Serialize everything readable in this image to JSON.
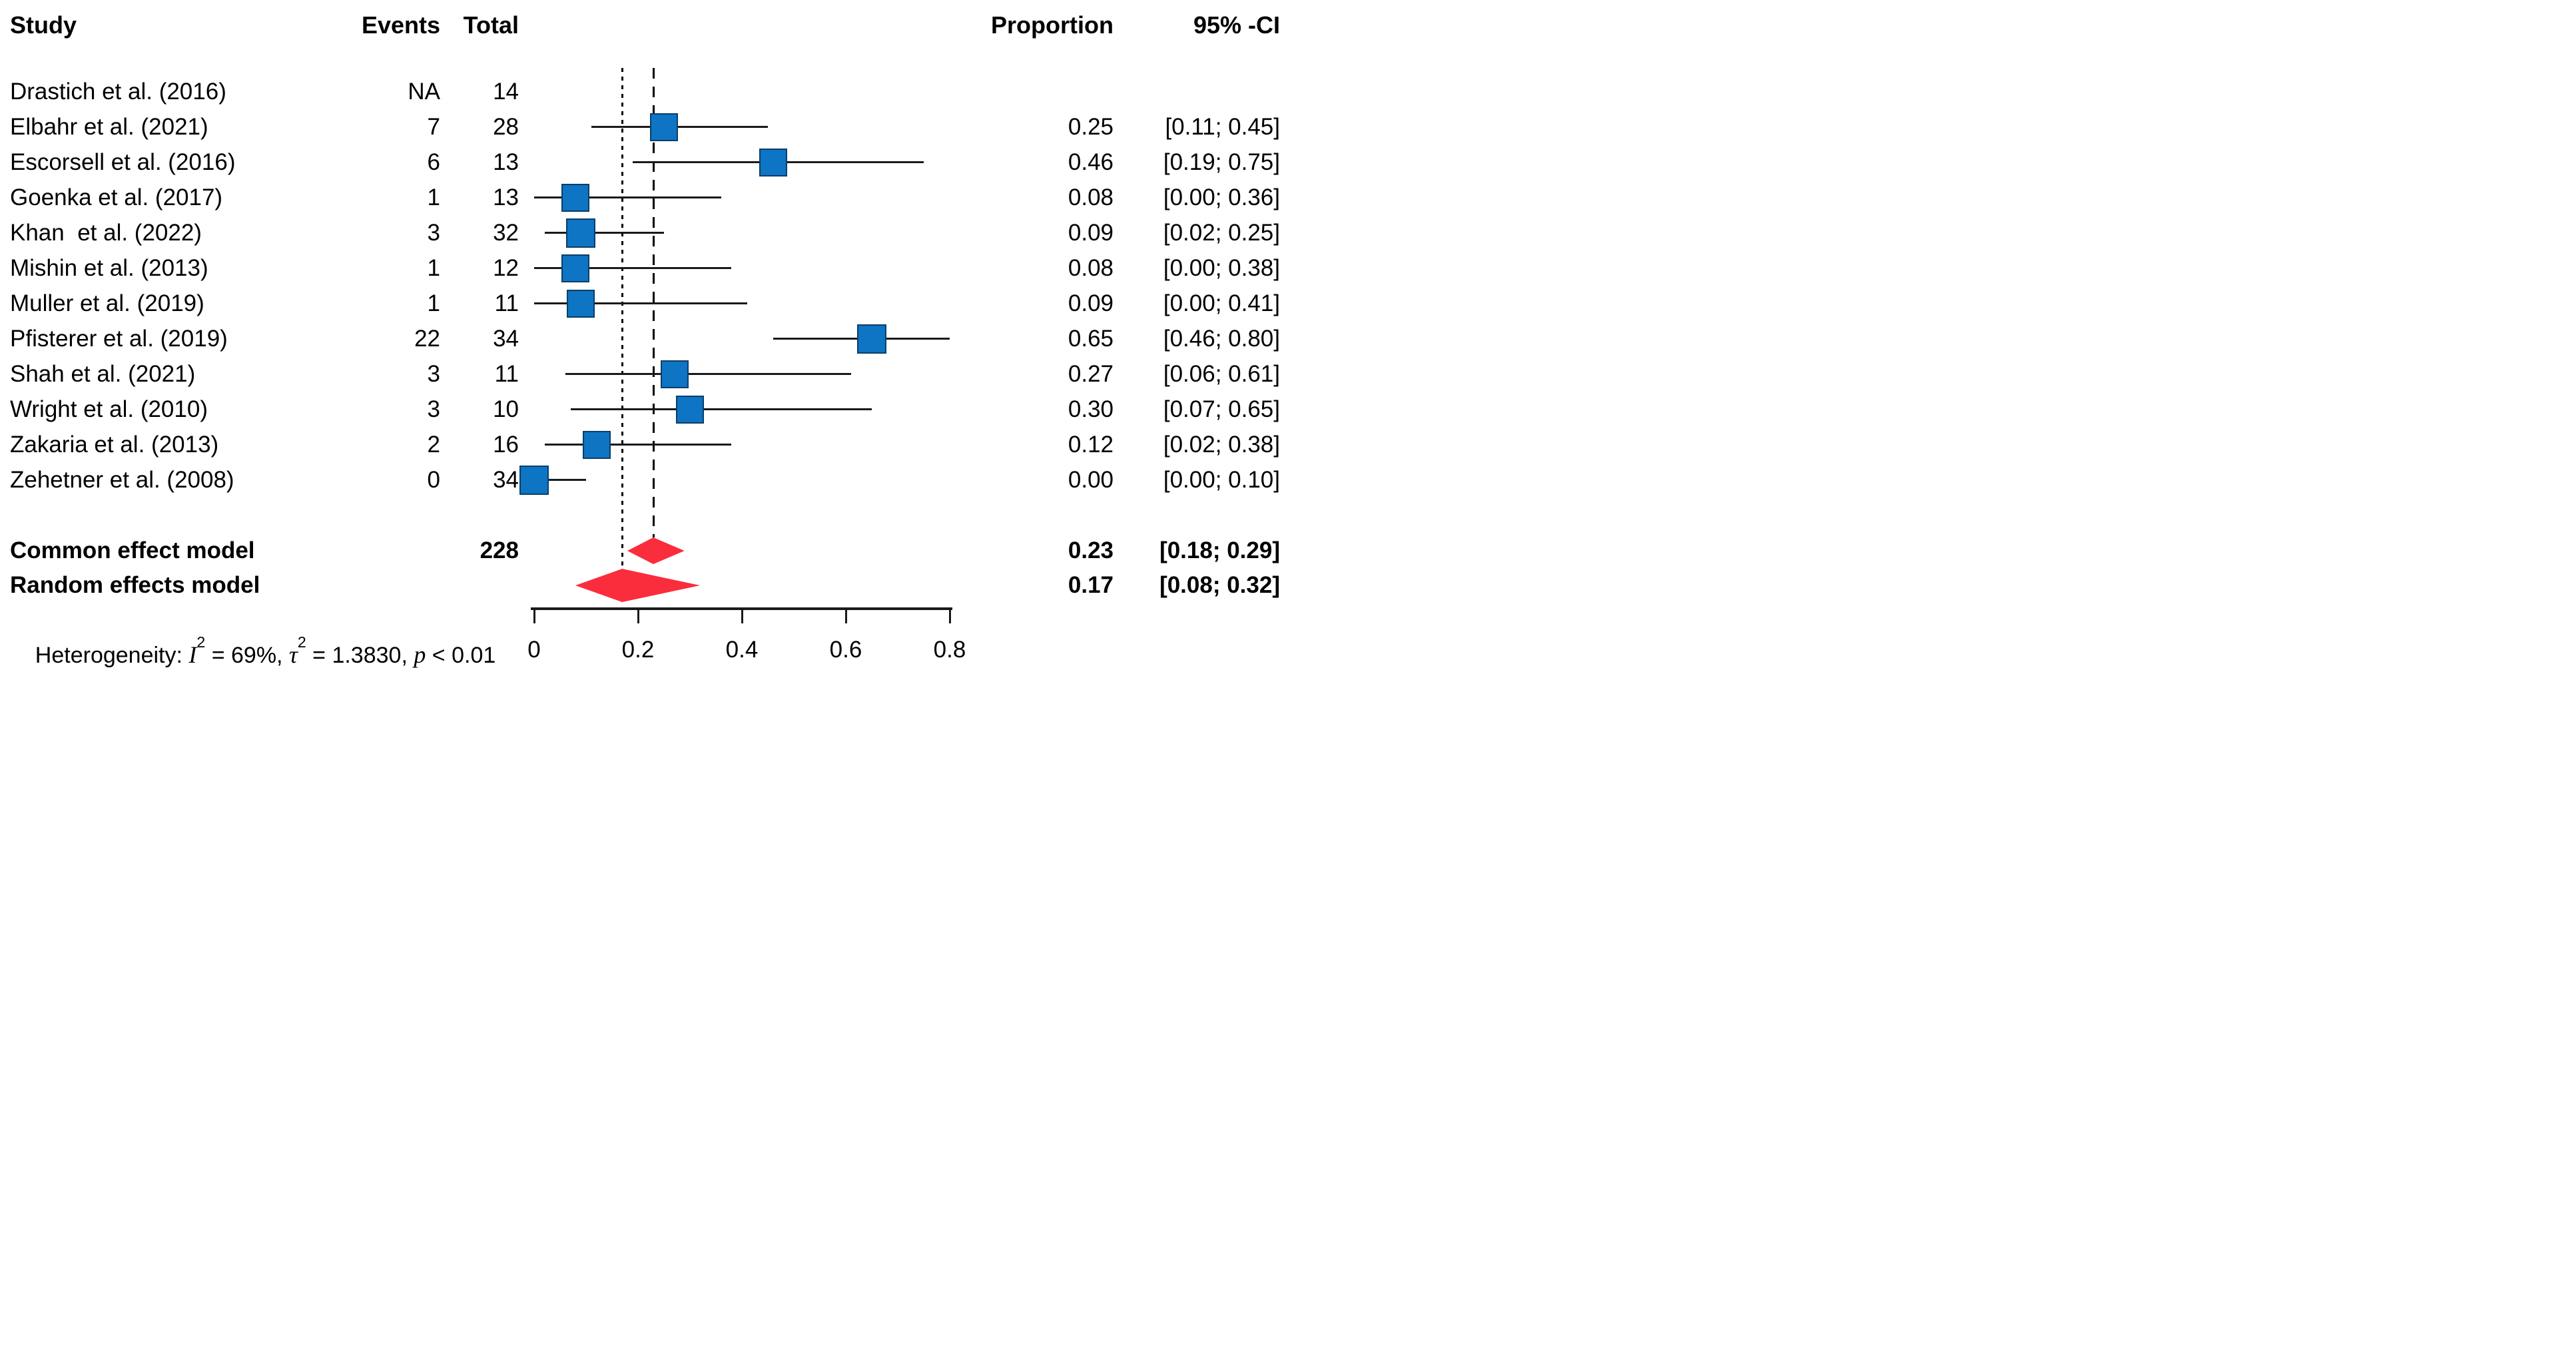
{
  "columns": {
    "study": "Study",
    "events": "Events",
    "total": "Total",
    "proportion": "Proportion",
    "ci": "95% -CI"
  },
  "chart_data": {
    "type": "forest",
    "title": "",
    "xlabel": "",
    "x_axis": {
      "range": [
        0,
        0.8
      ],
      "ticks": [
        0,
        0.2,
        0.4,
        0.6,
        0.8
      ],
      "tick_labels": [
        "0",
        "0.2",
        "0.4",
        "0.6",
        "0.8"
      ]
    },
    "studies": [
      {
        "label": "Drastich et al. (2016)",
        "events": "NA",
        "total": "14",
        "proportion": "",
        "ci_text": "",
        "estimate": null,
        "ci_low": null,
        "ci_high": null
      },
      {
        "label": "Elbahr et al. (2021)",
        "events": "7",
        "total": "28",
        "proportion": "0.25",
        "ci_text": "[0.11; 0.45]",
        "estimate": 0.25,
        "ci_low": 0.11,
        "ci_high": 0.45
      },
      {
        "label": "Escorsell et al. (2016)",
        "events": "6",
        "total": "13",
        "proportion": "0.46",
        "ci_text": "[0.19; 0.75]",
        "estimate": 0.46,
        "ci_low": 0.19,
        "ci_high": 0.75
      },
      {
        "label": "Goenka et al. (2017)",
        "events": "1",
        "total": "13",
        "proportion": "0.08",
        "ci_text": "[0.00; 0.36]",
        "estimate": 0.08,
        "ci_low": 0.0,
        "ci_high": 0.36
      },
      {
        "label": "Khan  et al. (2022)",
        "events": "3",
        "total": "32",
        "proportion": "0.09",
        "ci_text": "[0.02; 0.25]",
        "estimate": 0.09,
        "ci_low": 0.02,
        "ci_high": 0.25
      },
      {
        "label": "Mishin et al. (2013)",
        "events": "1",
        "total": "12",
        "proportion": "0.08",
        "ci_text": "[0.00; 0.38]",
        "estimate": 0.08,
        "ci_low": 0.0,
        "ci_high": 0.38
      },
      {
        "label": "Muller et al. (2019)",
        "events": "1",
        "total": "11",
        "proportion": "0.09",
        "ci_text": "[0.00; 0.41]",
        "estimate": 0.09,
        "ci_low": 0.0,
        "ci_high": 0.41
      },
      {
        "label": "Pfisterer et al. (2019)",
        "events": "22",
        "total": "34",
        "proportion": "0.65",
        "ci_text": "[0.46; 0.80]",
        "estimate": 0.65,
        "ci_low": 0.46,
        "ci_high": 0.8
      },
      {
        "label": "Shah et al. (2021)",
        "events": "3",
        "total": "11",
        "proportion": "0.27",
        "ci_text": "[0.06; 0.61]",
        "estimate": 0.27,
        "ci_low": 0.06,
        "ci_high": 0.61
      },
      {
        "label": "Wright et al. (2010)",
        "events": "3",
        "total": "10",
        "proportion": "0.30",
        "ci_text": "[0.07; 0.65]",
        "estimate": 0.3,
        "ci_low": 0.07,
        "ci_high": 0.65
      },
      {
        "label": "Zakaria et al. (2013)",
        "events": "2",
        "total": "16",
        "proportion": "0.12",
        "ci_text": "[0.02; 0.38]",
        "estimate": 0.12,
        "ci_low": 0.02,
        "ci_high": 0.38
      },
      {
        "label": "Zehetner et al. (2008)",
        "events": "0",
        "total": "34",
        "proportion": "0.00",
        "ci_text": "[0.00; 0.10]",
        "estimate": 0.0,
        "ci_low": 0.0,
        "ci_high": 0.1
      }
    ],
    "summaries": [
      {
        "label": "Common effect model",
        "total": "228",
        "proportion": "0.23",
        "ci_text": "[0.18; 0.29]",
        "estimate": 0.23,
        "ci_low": 0.18,
        "ci_high": 0.29
      },
      {
        "label": "Random effects model",
        "total": "",
        "proportion": "0.17",
        "ci_text": "[0.08; 0.32]",
        "estimate": 0.17,
        "ci_low": 0.08,
        "ci_high": 0.32
      }
    ],
    "reference_lines": [
      {
        "value": 0.23,
        "style": "dashed",
        "meaning": "common effect estimate"
      },
      {
        "value": 0.17,
        "style": "dotted",
        "meaning": "random effects estimate"
      }
    ],
    "heterogeneity": {
      "I2": "69%",
      "tau2": "1.3830",
      "p": "< 0.01"
    },
    "legend_position": "none",
    "grid": false
  },
  "heterogeneity_text": {
    "prefix": "Heterogeneity: ",
    "i_sym": "I",
    "i_sup": "2",
    "seg1": " = 69%, ",
    "tau_sym": "τ",
    "tau_sup": "2",
    "seg2": " = 1.3830, ",
    "p_sym": "p",
    "tail": " < 0.01"
  },
  "colors": {
    "square_fill": "#0e74c4",
    "square_border": "#0b3e69",
    "diamond_fill": "#fa2d3c",
    "line": "#1a1a1a",
    "text": "#000000",
    "background": "#ffffff"
  }
}
